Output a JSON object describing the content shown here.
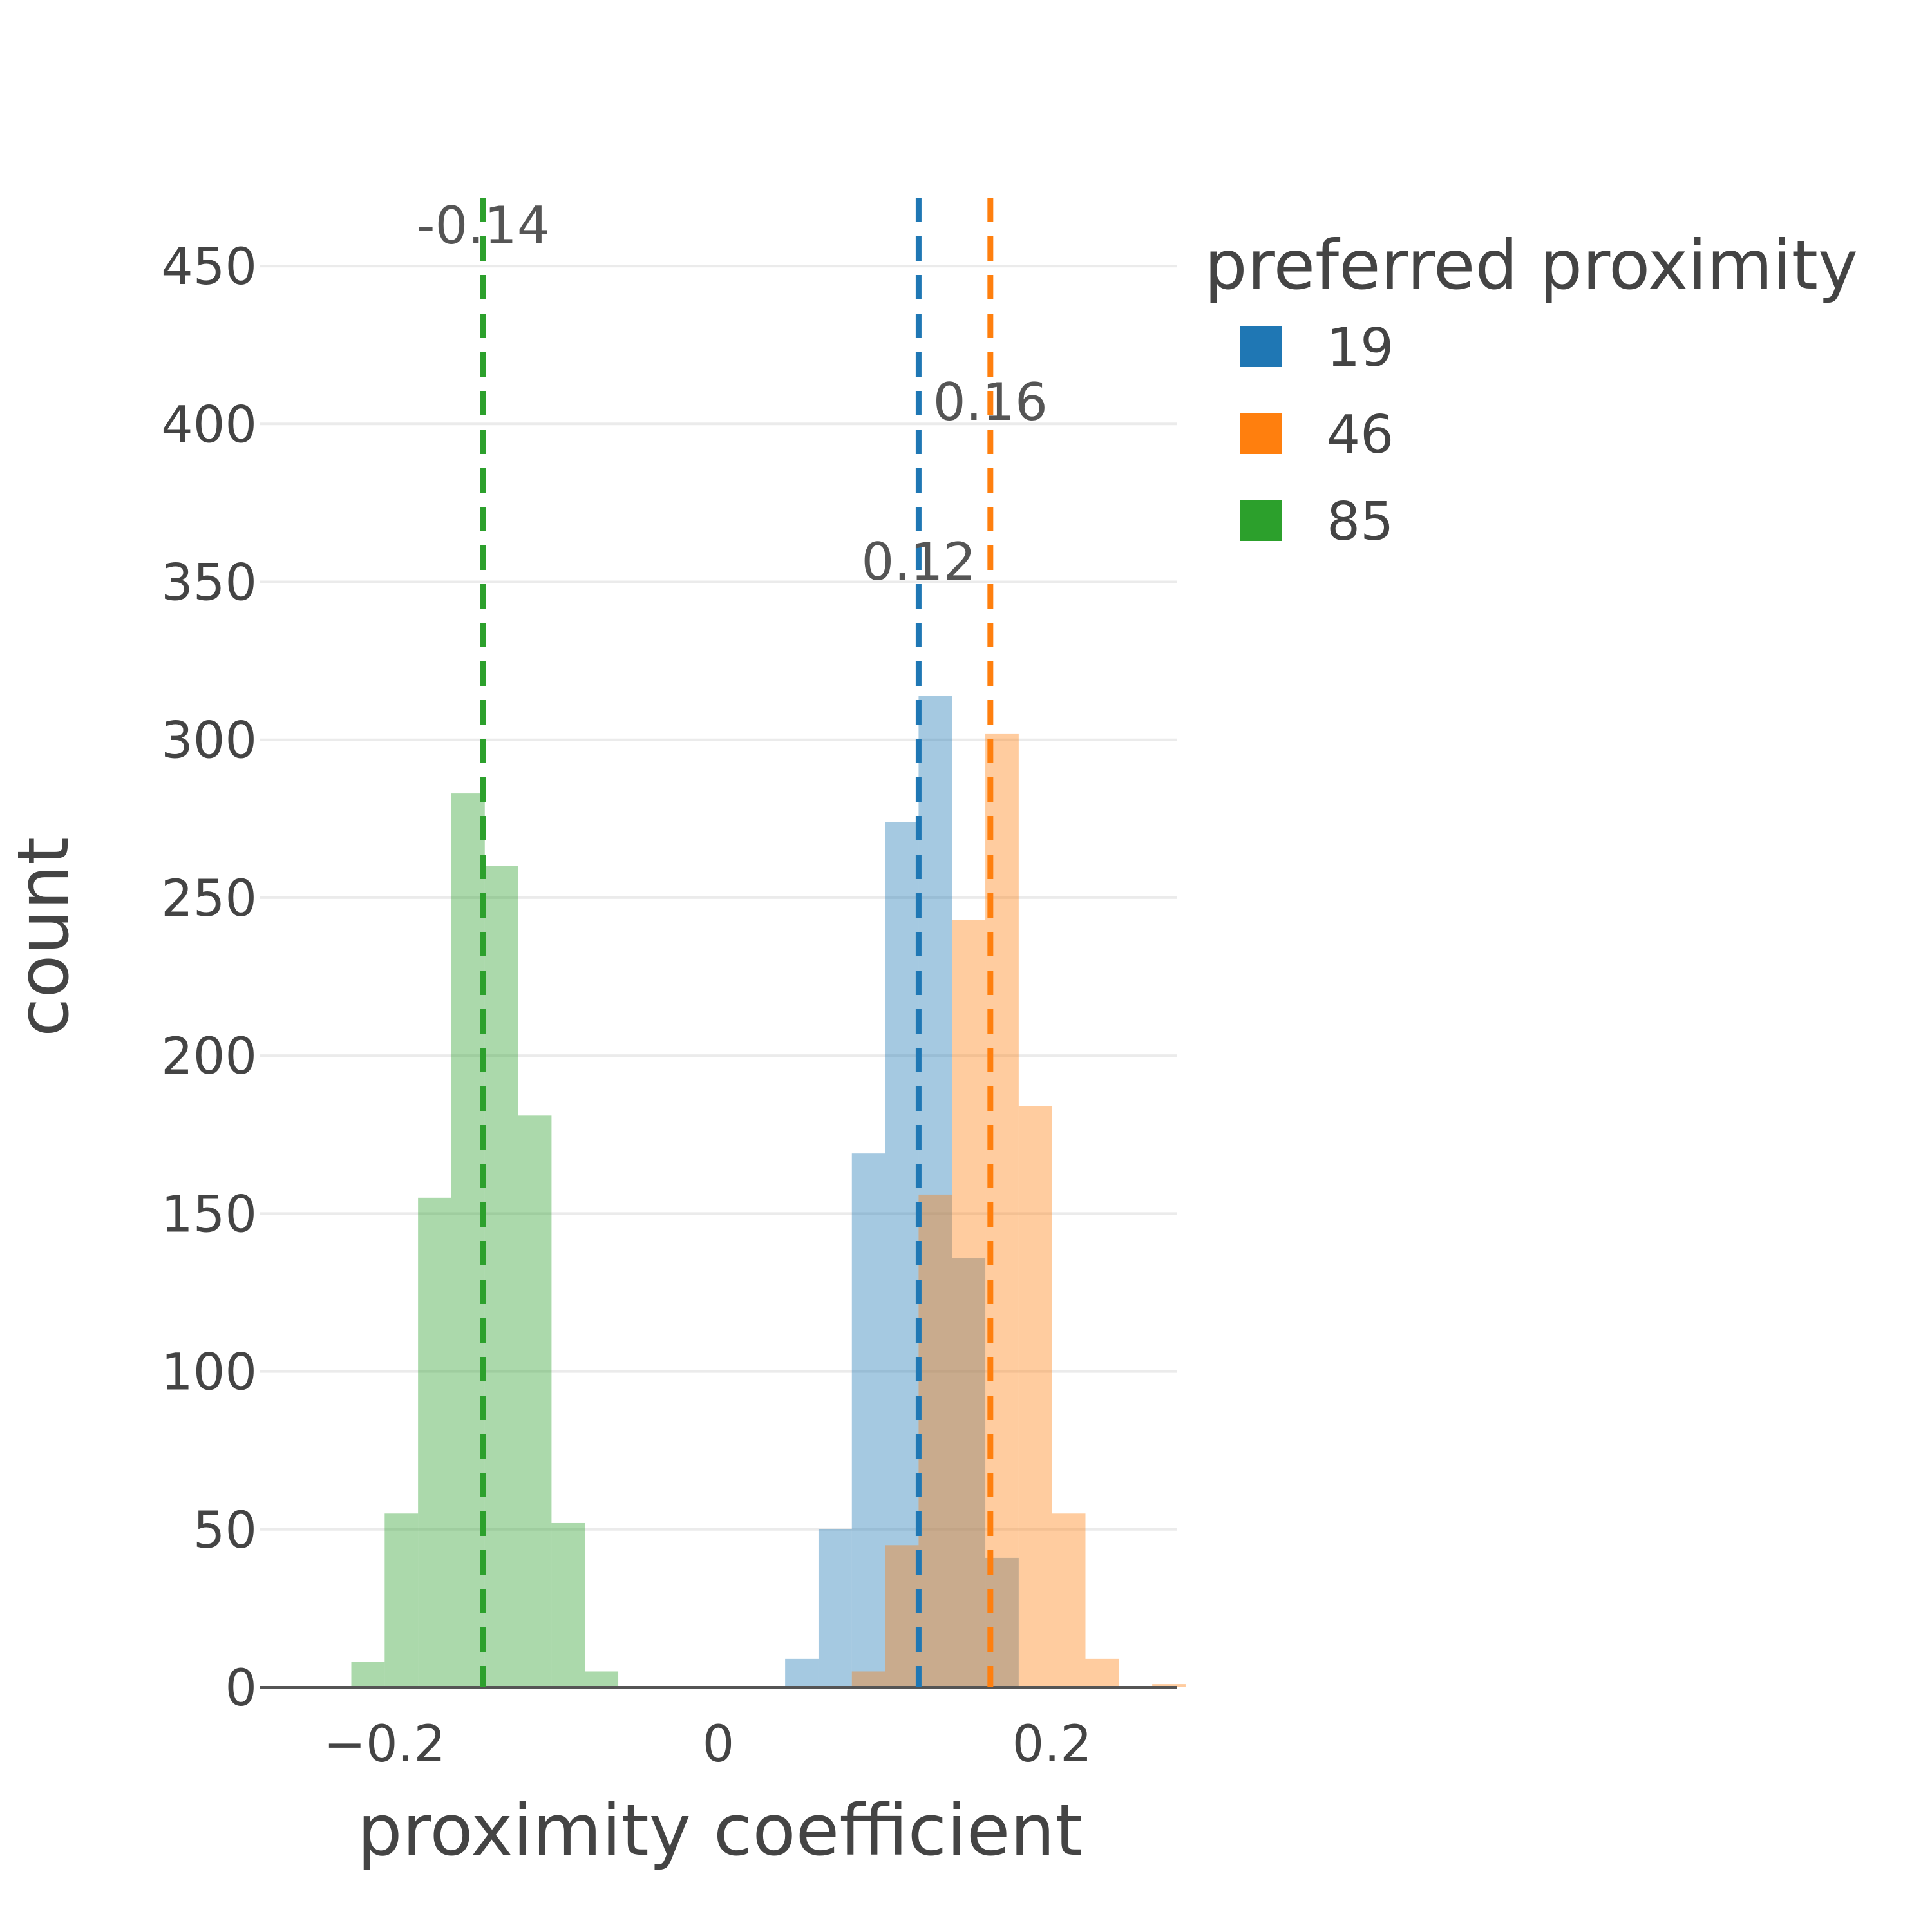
{
  "chart_data": {
    "type": "histogram",
    "xlabel": "proximity coefficient",
    "ylabel": "count",
    "xlim": [
      -0.275,
      0.275
    ],
    "ylim": [
      0,
      470
    ],
    "x_ticks": [
      -0.2,
      0,
      0.2
    ],
    "x_tick_labels": [
      "−0.2",
      "0",
      "0.2"
    ],
    "y_ticks": [
      0,
      50,
      100,
      150,
      200,
      250,
      300,
      350,
      400,
      450
    ],
    "bin_width": 0.02,
    "grid": "horizontal",
    "legend": {
      "title": "preferred proximity",
      "position": "right"
    },
    "series": [
      {
        "name": "19",
        "color": "#1f77b4",
        "opacity": 0.4,
        "bins": [
          {
            "x0": 0.04,
            "x1": 0.06,
            "count": 9
          },
          {
            "x0": 0.06,
            "x1": 0.08,
            "count": 50
          },
          {
            "x0": 0.08,
            "x1": 0.1,
            "count": 169
          },
          {
            "x0": 0.1,
            "x1": 0.12,
            "count": 274
          },
          {
            "x0": 0.12,
            "x1": 0.14,
            "count": 314
          },
          {
            "x0": 0.14,
            "x1": 0.16,
            "count": 136
          },
          {
            "x0": 0.16,
            "x1": 0.18,
            "count": 41
          }
        ],
        "mean": 0.12,
        "mean_label": "0.12"
      },
      {
        "name": "46",
        "color": "#ff7f0e",
        "opacity": 0.4,
        "bins": [
          {
            "x0": 0.08,
            "x1": 0.1,
            "count": 5
          },
          {
            "x0": 0.1,
            "x1": 0.12,
            "count": 45
          },
          {
            "x0": 0.12,
            "x1": 0.14,
            "count": 156
          },
          {
            "x0": 0.14,
            "x1": 0.16,
            "count": 243
          },
          {
            "x0": 0.16,
            "x1": 0.18,
            "count": 302
          },
          {
            "x0": 0.18,
            "x1": 0.2,
            "count": 184
          },
          {
            "x0": 0.2,
            "x1": 0.22,
            "count": 55
          },
          {
            "x0": 0.22,
            "x1": 0.24,
            "count": 9
          },
          {
            "x0": 0.26,
            "x1": 0.28,
            "count": 1
          }
        ],
        "mean": 0.163,
        "mean_label": "0.16"
      },
      {
        "name": "85",
        "color": "#2ca02c",
        "opacity": 0.4,
        "bins": [
          {
            "x0": -0.22,
            "x1": -0.2,
            "count": 8
          },
          {
            "x0": -0.2,
            "x1": -0.18,
            "count": 55
          },
          {
            "x0": -0.18,
            "x1": -0.16,
            "count": 155
          },
          {
            "x0": -0.16,
            "x1": -0.14,
            "count": 283
          },
          {
            "x0": -0.14,
            "x1": -0.12,
            "count": 260
          },
          {
            "x0": -0.12,
            "x1": -0.1,
            "count": 181
          },
          {
            "x0": -0.1,
            "x1": -0.08,
            "count": 52
          },
          {
            "x0": -0.08,
            "x1": -0.06,
            "count": 5
          }
        ],
        "mean": -0.141,
        "mean_label": "-0.14"
      }
    ]
  }
}
